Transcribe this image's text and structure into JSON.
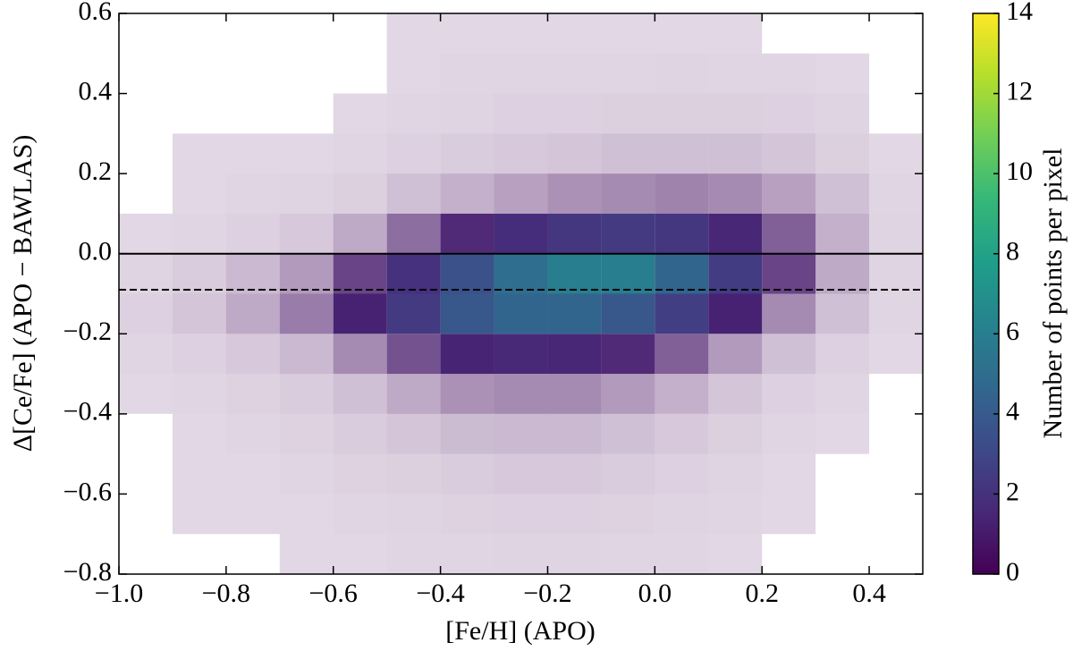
{
  "chart_data": {
    "type": "density",
    "xlabel": "[Fe/H] (APO)",
    "ylabel": "Δ[Ce/Fe] (APO − BAWLAS)",
    "xlim": [
      -1.0,
      0.5
    ],
    "ylim": [
      -0.8,
      0.6
    ],
    "xticks": [
      {
        "value": -1.0,
        "label": "−1.0"
      },
      {
        "value": -0.8,
        "label": "−0.8"
      },
      {
        "value": -0.6,
        "label": "−0.6"
      },
      {
        "value": -0.4,
        "label": "−0.4"
      },
      {
        "value": -0.2,
        "label": "−0.2"
      },
      {
        "value": 0.0,
        "label": "0.0"
      },
      0.2,
      0.4
    ],
    "yticks": [
      0.6,
      0.4,
      0.2,
      {
        "value": 0.0,
        "label": "0.0"
      },
      {
        "value": -0.2,
        "label": "−0.2"
      },
      {
        "value": -0.4,
        "label": "−0.4"
      },
      {
        "value": -0.6,
        "label": "−0.6"
      },
      {
        "value": -0.8,
        "label": "−0.8"
      }
    ],
    "xbins": [
      -1.0,
      -0.9,
      -0.8,
      -0.7,
      -0.6,
      -0.5,
      -0.4,
      -0.3,
      -0.2,
      -0.1,
      0.0,
      0.1,
      0.2,
      0.3,
      0.4,
      0.5
    ],
    "ybins": [
      -0.8,
      -0.7,
      -0.6,
      -0.5,
      -0.4,
      -0.3,
      -0.2,
      -0.1,
      0.0,
      0.1,
      0.2,
      0.3,
      0.4,
      0.5,
      0.6
    ],
    "z": [
      [
        0,
        0,
        0,
        0.01,
        0.01,
        0.02,
        0.02,
        0.03,
        0.03,
        0.02,
        0.02,
        0.01,
        0,
        0,
        0
      ],
      [
        0,
        0.01,
        0.01,
        0.01,
        0.02,
        0.03,
        0.04,
        0.05,
        0.05,
        0.04,
        0.03,
        0.02,
        0.01,
        0,
        0
      ],
      [
        0,
        0.01,
        0.01,
        0.02,
        0.04,
        0.06,
        0.08,
        0.1,
        0.1,
        0.08,
        0.05,
        0.03,
        0.01,
        0,
        0
      ],
      [
        0,
        0.01,
        0.02,
        0.04,
        0.08,
        0.12,
        0.18,
        0.2,
        0.2,
        0.15,
        0.1,
        0.06,
        0.02,
        0.01,
        0
      ],
      [
        0.01,
        0.02,
        0.04,
        0.08,
        0.15,
        0.3,
        0.45,
        0.5,
        0.5,
        0.4,
        0.25,
        0.12,
        0.05,
        0.02,
        0
      ],
      [
        0.02,
        0.05,
        0.1,
        0.2,
        0.5,
        0.9,
        1.4,
        1.6,
        1.5,
        1.2,
        0.8,
        0.4,
        0.15,
        0.05,
        0.01
      ],
      [
        0.05,
        0.12,
        0.3,
        0.6,
        1.3,
        2.4,
        3.8,
        4.5,
        4.5,
        3.8,
        2.6,
        1.3,
        0.5,
        0.15,
        0.02
      ],
      [
        0.03,
        0.08,
        0.2,
        0.4,
        1.0,
        2.0,
        3.5,
        5,
        6,
        6,
        4.5,
        2.5,
        1.0,
        0.3,
        0.03
      ],
      [
        0.01,
        0.02,
        0.05,
        0.1,
        0.3,
        0.7,
        1.2,
        1.8,
        2.2,
        2.4,
        2.2,
        1.5,
        0.8,
        0.25,
        0.03
      ],
      [
        0,
        0.01,
        0.02,
        0.03,
        0.06,
        0.15,
        0.25,
        0.35,
        0.45,
        0.5,
        0.55,
        0.5,
        0.35,
        0.15,
        0.02
      ],
      [
        0,
        0.01,
        0.01,
        0.01,
        0.02,
        0.05,
        0.08,
        0.1,
        0.12,
        0.15,
        0.15,
        0.15,
        0.12,
        0.06,
        0.01
      ],
      [
        0,
        0,
        0,
        0,
        0.01,
        0.02,
        0.03,
        0.05,
        0.05,
        0.06,
        0.06,
        0.06,
        0.05,
        0.03,
        0
      ],
      [
        0,
        0,
        0,
        0,
        0,
        0.01,
        0.02,
        0.02,
        0.02,
        0.02,
        0.03,
        0.02,
        0.02,
        0.01,
        0
      ],
      [
        0,
        0,
        0,
        0,
        0,
        0.01,
        0.01,
        0.01,
        0.01,
        0.01,
        0.01,
        0.01,
        0,
        0,
        0
      ]
    ],
    "colormap": "viridis",
    "hlines": [
      {
        "y": 0.0,
        "style": "solid"
      },
      {
        "y": -0.09,
        "style": "dashed"
      }
    ],
    "colorbar": {
      "label": "Number of points per pixel",
      "lim": [
        0,
        14
      ],
      "ticks": [
        0,
        2,
        4,
        6,
        8,
        10,
        12,
        14
      ]
    }
  }
}
